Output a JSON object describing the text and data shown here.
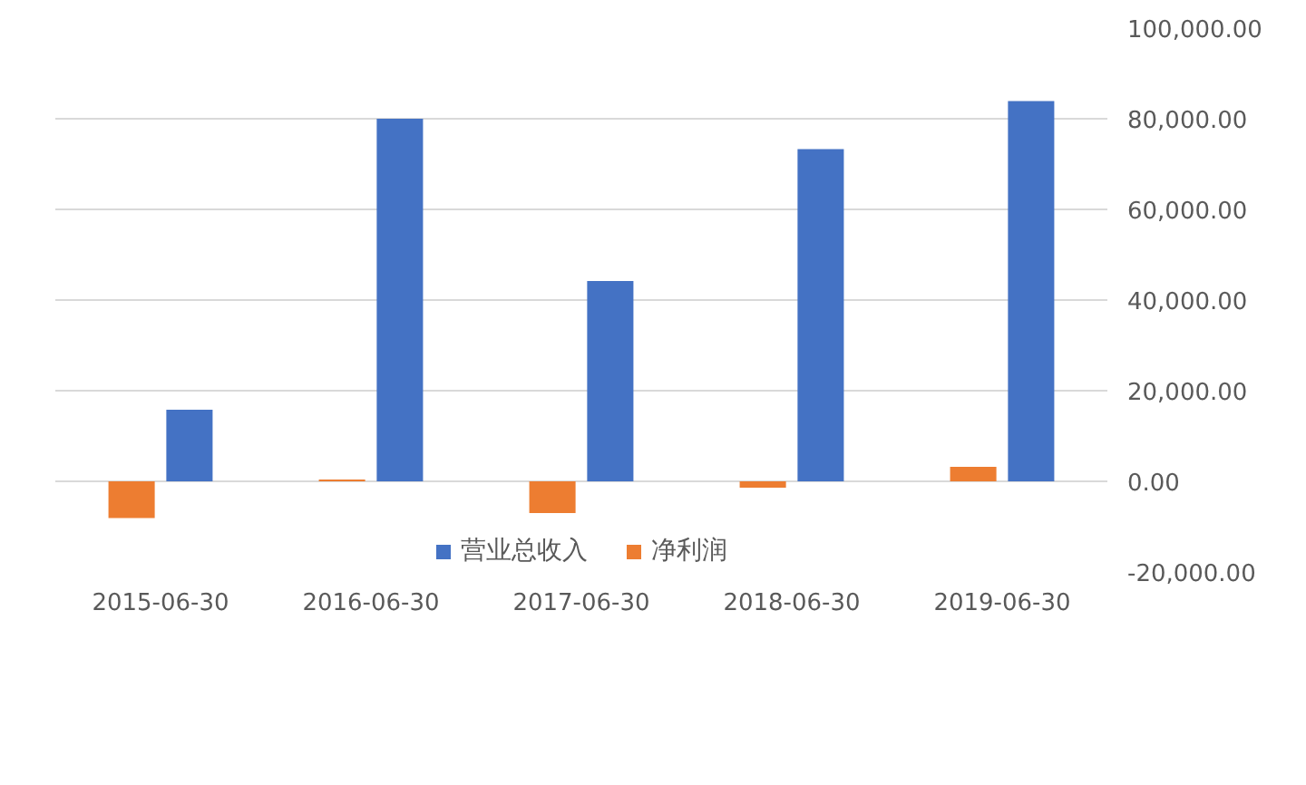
{
  "chart_data": {
    "type": "bar",
    "categories": [
      "2015-06-30",
      "2016-06-30",
      "2017-06-30",
      "2018-06-30",
      "2019-06-30"
    ],
    "series": [
      {
        "name": "营业总收入",
        "color": "#4472c4",
        "values": [
          15800,
          80000,
          44200,
          73300,
          83900
        ]
      },
      {
        "name": "净利润",
        "color": "#ed7d31",
        "values": [
          -8100,
          400,
          -7000,
          -1400,
          3200
        ]
      }
    ],
    "ylim": [
      -20000,
      100000
    ],
    "yticks": [
      {
        "value": -20000,
        "label": "-20,000.00"
      },
      {
        "value": 0,
        "label": "0.00"
      },
      {
        "value": 20000,
        "label": "20,000.00"
      },
      {
        "value": 40000,
        "label": "40,000.00"
      },
      {
        "value": 60000,
        "label": "60,000.00"
      },
      {
        "value": 80000,
        "label": "80,000.00"
      },
      {
        "value": 100000,
        "label": "100,000.00"
      }
    ],
    "grid": "y",
    "legend": "bottom"
  }
}
